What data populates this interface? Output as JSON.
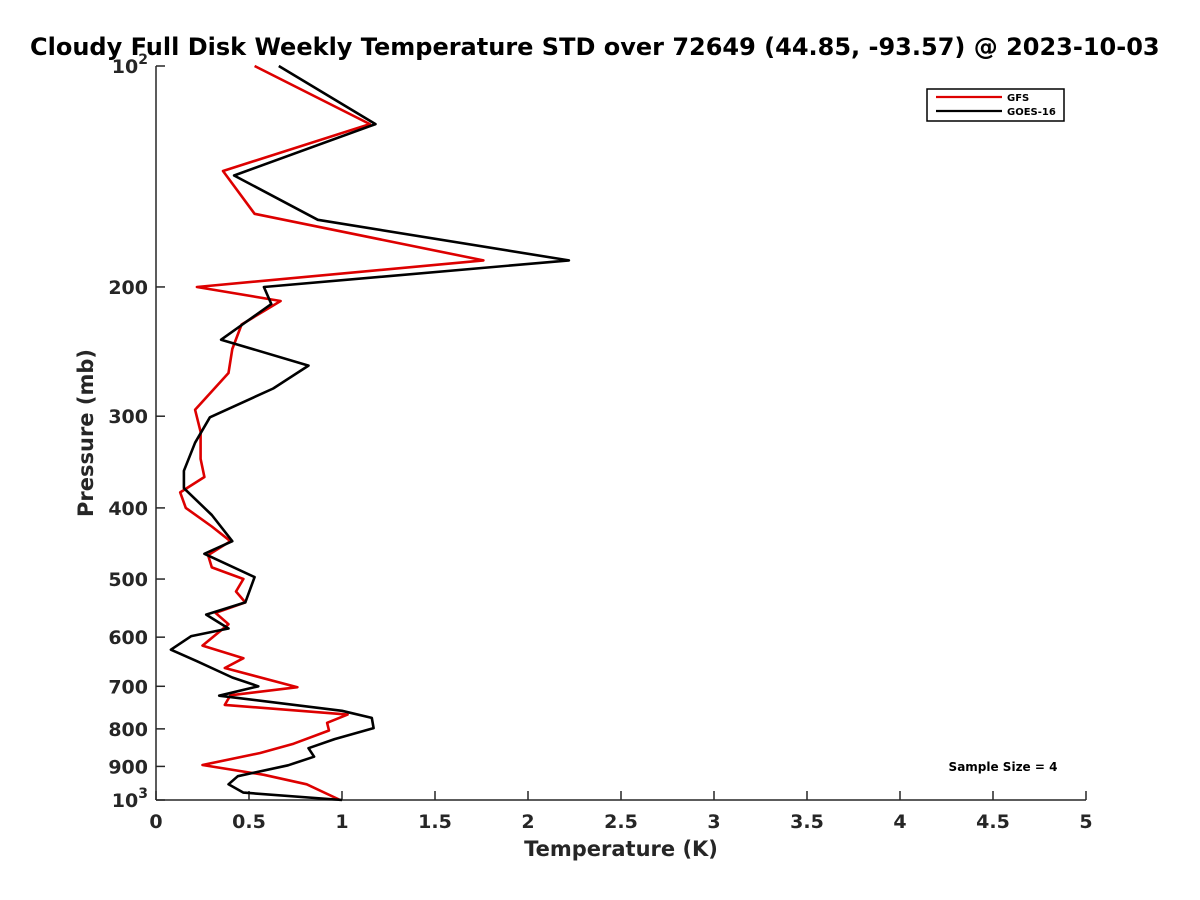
{
  "chart_data": {
    "type": "line",
    "title": "Cloudy Full Disk Weekly Temperature STD over 72649 (44.85, -93.57) @ 2023-10-03",
    "xlabel": "Temperature (K)",
    "ylabel": "Pressure (mb)",
    "xlim": [
      0,
      5
    ],
    "ylim": [
      100,
      1000
    ],
    "y_scale": "log",
    "y_reversed": true,
    "x_ticks": [
      "0",
      "0.5",
      "1",
      "1.5",
      "2",
      "2.5",
      "3",
      "3.5",
      "4",
      "4.5",
      "5"
    ],
    "y_ticks": [
      {
        "value": 100,
        "base": "10",
        "exp": "2"
      },
      {
        "value": 200,
        "label": "200"
      },
      {
        "value": 300,
        "label": "300"
      },
      {
        "value": 400,
        "label": "400"
      },
      {
        "value": 500,
        "label": "500"
      },
      {
        "value": 600,
        "label": "600"
      },
      {
        "value": 700,
        "label": "700"
      },
      {
        "value": 800,
        "label": "800"
      },
      {
        "value": 900,
        "label": "900"
      },
      {
        "value": 1000,
        "base": "10",
        "exp": "3"
      }
    ],
    "legend_position": "top-right",
    "grid": false,
    "annotation": "Sample Size = 4",
    "series": [
      {
        "name": "GFS",
        "color": "#dd0000",
        "points": [
          [
            0.53,
            100
          ],
          [
            1.15,
            120
          ],
          [
            0.36,
            139
          ],
          [
            0.53,
            159
          ],
          [
            1.76,
            184
          ],
          [
            0.22,
            200
          ],
          [
            0.67,
            209
          ],
          [
            0.46,
            225
          ],
          [
            0.41,
            243
          ],
          [
            0.39,
            262
          ],
          [
            0.21,
            294
          ],
          [
            0.24,
            315
          ],
          [
            0.24,
            343
          ],
          [
            0.26,
            363
          ],
          [
            0.13,
            381
          ],
          [
            0.16,
            400
          ],
          [
            0.3,
            424
          ],
          [
            0.4,
            444
          ],
          [
            0.28,
            464
          ],
          [
            0.3,
            482
          ],
          [
            0.47,
            500
          ],
          [
            0.43,
            520
          ],
          [
            0.48,
            538
          ],
          [
            0.32,
            556
          ],
          [
            0.39,
            576
          ],
          [
            0.25,
            616
          ],
          [
            0.47,
            641
          ],
          [
            0.37,
            661
          ],
          [
            0.76,
            702
          ],
          [
            0.4,
            720
          ],
          [
            0.37,
            742
          ],
          [
            1.03,
            765
          ],
          [
            0.92,
            785
          ],
          [
            0.93,
            804
          ],
          [
            0.74,
            838
          ],
          [
            0.56,
            863
          ],
          [
            0.25,
            896
          ],
          [
            0.58,
            924
          ],
          [
            0.81,
            952
          ],
          [
            0.99,
            1000
          ]
        ]
      },
      {
        "name": "GOES-16",
        "color": "#000000",
        "points": [
          [
            0.66,
            100
          ],
          [
            1.18,
            120
          ],
          [
            0.42,
            141
          ],
          [
            0.87,
            162
          ],
          [
            2.22,
            184
          ],
          [
            0.58,
            200
          ],
          [
            0.62,
            211
          ],
          [
            0.35,
            236
          ],
          [
            0.82,
            256
          ],
          [
            0.63,
            275
          ],
          [
            0.29,
            301
          ],
          [
            0.21,
            326
          ],
          [
            0.15,
            356
          ],
          [
            0.15,
            376
          ],
          [
            0.3,
            409
          ],
          [
            0.41,
            444
          ],
          [
            0.26,
            462
          ],
          [
            0.53,
            497
          ],
          [
            0.48,
            538
          ],
          [
            0.27,
            559
          ],
          [
            0.39,
            584
          ],
          [
            0.19,
            598
          ],
          [
            0.08,
            624
          ],
          [
            0.22,
            647
          ],
          [
            0.41,
            681
          ],
          [
            0.55,
            700
          ],
          [
            0.34,
            721
          ],
          [
            1.0,
            756
          ],
          [
            1.16,
            773
          ],
          [
            1.17,
            798
          ],
          [
            0.96,
            826
          ],
          [
            0.82,
            850
          ],
          [
            0.85,
            873
          ],
          [
            0.71,
            897
          ],
          [
            0.44,
            928
          ],
          [
            0.39,
            952
          ],
          [
            0.47,
            977
          ],
          [
            1.0,
            1000
          ]
        ]
      }
    ]
  }
}
